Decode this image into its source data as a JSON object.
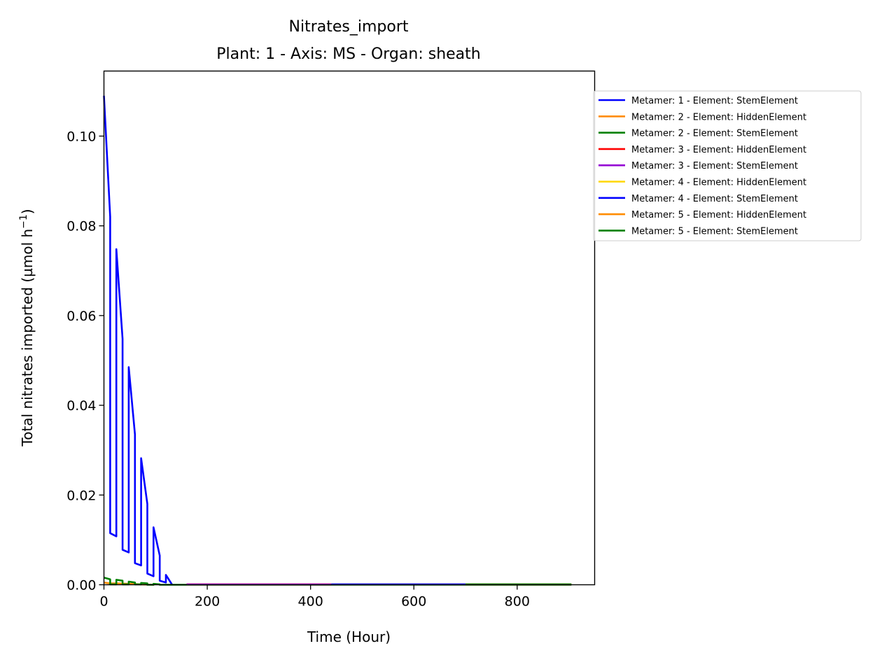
{
  "chart_data": {
    "type": "line",
    "title": "Nitrates_import",
    "subtitle": "Plant: 1 - Axis: MS - Organ: sheath",
    "xlabel": "Time (Hour)",
    "ylabel": "Total nitrates imported (µmol h",
    "ylabel_sup": "−1",
    "ylabel_close": ")",
    "xlim": [
      0,
      950
    ],
    "ylim": [
      0,
      0.1145
    ],
    "xticks": [
      0,
      200,
      400,
      600,
      800
    ],
    "xtick_labels": [
      "0",
      "200",
      "400",
      "600",
      "800"
    ],
    "yticks": [
      0,
      0.02,
      0.04,
      0.06,
      0.08,
      0.1
    ],
    "ytick_labels": [
      "0.00",
      "0.02",
      "0.04",
      "0.06",
      "0.08",
      "0.10"
    ],
    "grid": false,
    "legend_position": "outside-right",
    "series": [
      {
        "name": "Metamer: 1 - Element: StemElement",
        "color": "#0000ff",
        "x": [
          0,
          12,
          12,
          24,
          24,
          36,
          36,
          48,
          48,
          60,
          60,
          72,
          72,
          84,
          84,
          96,
          96,
          108,
          108,
          120,
          120,
          132
        ],
        "y": [
          0.109,
          0.082,
          0.0115,
          0.0108,
          0.0748,
          0.0548,
          0.0078,
          0.0072,
          0.0485,
          0.0335,
          0.0048,
          0.0043,
          0.0282,
          0.018,
          0.0025,
          0.0019,
          0.0128,
          0.0065,
          0.0009,
          0.0005,
          0.0022,
          0.0
        ]
      },
      {
        "name": "Metamer: 2 - Element: HiddenElement",
        "color": "#ff8c00",
        "x": [
          0,
          12,
          24,
          48,
          72,
          96
        ],
        "y": [
          0.0005,
          0.0003,
          0.0003,
          0.0002,
          0.0001,
          0.0
        ]
      },
      {
        "name": "Metamer: 2 - Element: StemElement",
        "color": "#008000",
        "x": [
          0,
          12,
          12,
          24,
          24,
          36,
          36,
          48,
          48,
          60,
          60,
          72,
          72,
          84,
          84,
          96,
          96,
          108,
          108,
          120,
          160,
          300,
          500,
          700,
          905
        ],
        "y": [
          0.0016,
          0.0012,
          0.0001,
          0.0001,
          0.0011,
          0.0009,
          0.0001,
          0.0001,
          0.0007,
          0.0005,
          0.0001,
          0.0001,
          0.0004,
          0.0003,
          0.0,
          0.0,
          0.0002,
          0.0001,
          0.0,
          0.0,
          0.0,
          0.0,
          0.0,
          0.0,
          0.0
        ]
      },
      {
        "name": "Metamer: 3 - Element: HiddenElement",
        "color": "#ff0000",
        "x": [
          160,
          300,
          440
        ],
        "y": [
          0.0001,
          0.0001,
          0.0001
        ]
      },
      {
        "name": "Metamer: 3 - Element: StemElement",
        "color": "#9400d3",
        "x": [
          160,
          300,
          440
        ],
        "y": [
          8e-05,
          8e-05,
          8e-05
        ]
      },
      {
        "name": "Metamer: 4 - Element: HiddenElement",
        "color": "#ffd700",
        "x": [
          440,
          570,
          700
        ],
        "y": [
          0.0001,
          0.0001,
          0.0001
        ]
      },
      {
        "name": "Metamer: 4 - Element: StemElement",
        "color": "#0000ff",
        "x": [
          440,
          570,
          700
        ],
        "y": [
          0.0001,
          0.0001,
          0.0001
        ]
      },
      {
        "name": "Metamer: 5 - Element: HiddenElement",
        "color": "#ff8c00",
        "x": [
          700,
          800,
          905
        ],
        "y": [
          0.0001,
          0.0001,
          0.0001
        ]
      },
      {
        "name": "Metamer: 5 - Element: StemElement",
        "color": "#008000",
        "x": [
          700,
          800,
          905
        ],
        "y": [
          0.0001,
          0.0001,
          0.0001
        ]
      }
    ]
  }
}
